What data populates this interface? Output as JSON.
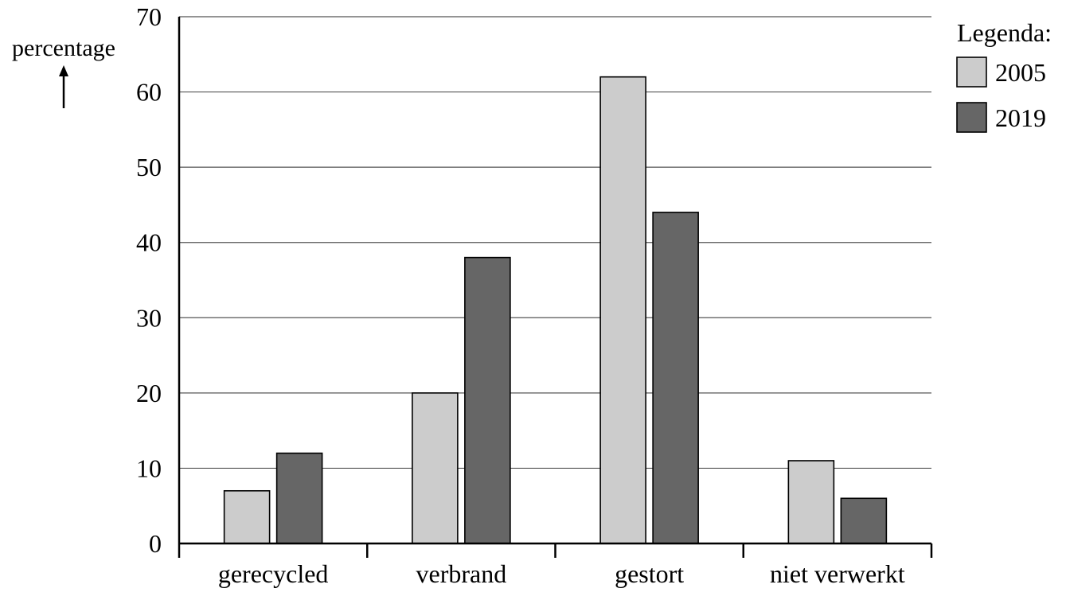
{
  "chart_data": {
    "type": "bar",
    "ylabel": "percentage",
    "ylim": [
      0,
      70
    ],
    "yticks": [
      0,
      10,
      20,
      30,
      40,
      50,
      60,
      70
    ],
    "grid": true,
    "legend_position": "top-right",
    "legend_title": "Legenda:",
    "categories": [
      "gerecycled",
      "verbrand",
      "gestort",
      "niet verwerkt"
    ],
    "series": [
      {
        "name": "2005",
        "color": "#cccccc",
        "values": [
          7,
          20,
          62,
          11
        ]
      },
      {
        "name": "2019",
        "color": "#666666",
        "values": [
          12,
          38,
          44,
          6
        ]
      }
    ]
  }
}
